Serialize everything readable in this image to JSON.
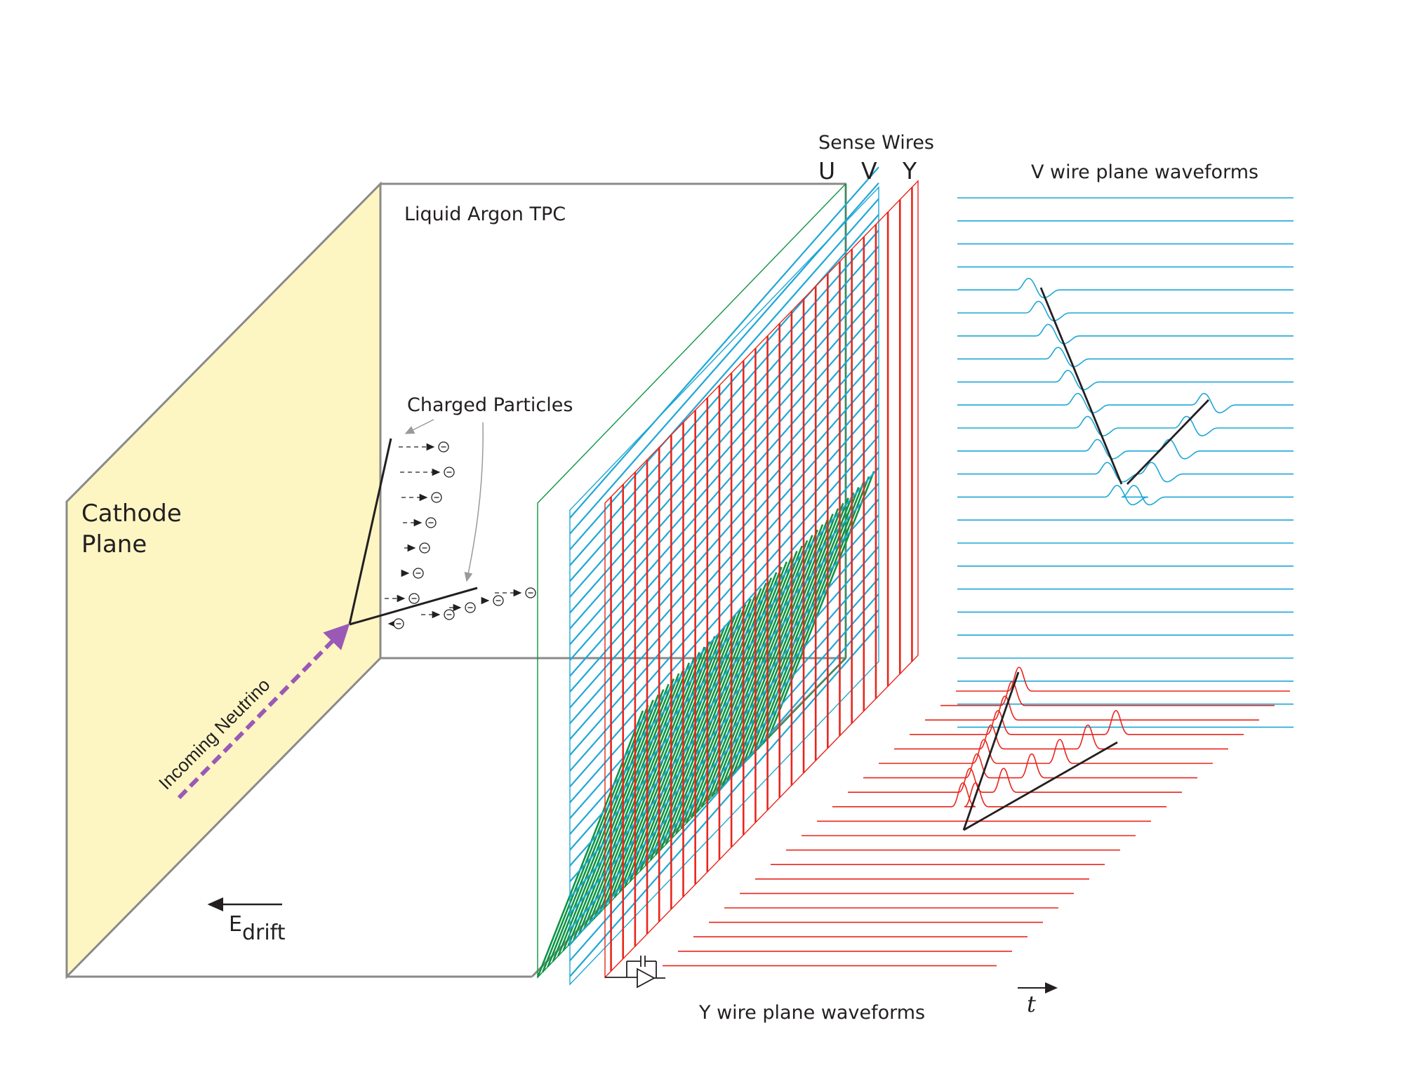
{
  "labels": {
    "sense_wires": "Sense Wires",
    "u": "U",
    "v": "V",
    "y": "Y",
    "v_wire_waveforms": "V wire plane waveforms",
    "liquid_argon_tpc": "Liquid Argon TPC",
    "charged_particles": "Charged Particles",
    "cathode_line1": "Cathode",
    "cathode_line2": "Plane",
    "incoming_neutrino": "Incoming Neutrino",
    "e_drift_main": "E",
    "e_drift_sub": "drift",
    "y_wire_waveforms": "Y wire plane waveforms",
    "time_axis": "t"
  },
  "colors": {
    "cathode_fill": "#fdf6c3",
    "u_wires": "#0e9445",
    "v_wires": "#1ea7d6",
    "y_wires": "#e8261c",
    "tracks": "#231f20",
    "neutrino": "#9b59b6",
    "box_lines": "#8a8a8a"
  },
  "v_waveforms": {
    "count": 24
  },
  "y_waveforms": {
    "count": 20
  }
}
